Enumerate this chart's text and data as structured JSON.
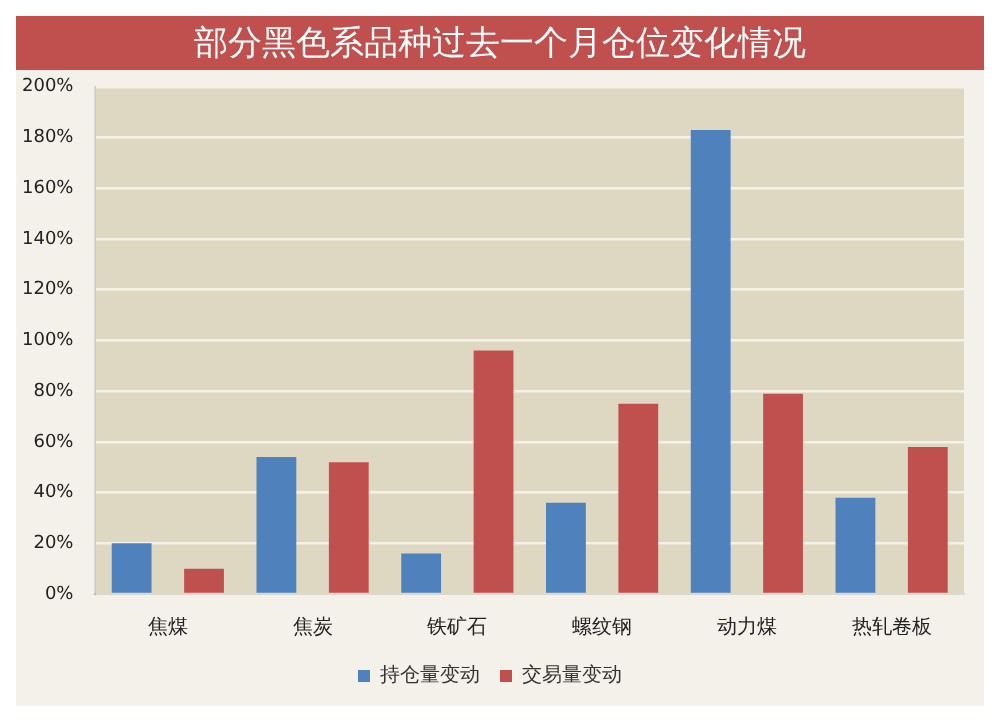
{
  "chart_data": {
    "type": "bar",
    "title": "部分黑色系品种过去一个月仓位变化情况",
    "categories": [
      "焦煤",
      "焦炭",
      "铁矿石",
      "螺纹钢",
      "动力煤",
      "热轧卷板"
    ],
    "series": [
      {
        "name": "持仓量变动",
        "color": "#4f81bd",
        "values": [
          20,
          54,
          16,
          36,
          183,
          38
        ]
      },
      {
        "name": "交易量变动",
        "color": "#c0504d",
        "values": [
          10,
          52,
          96,
          75,
          79,
          58
        ]
      }
    ],
    "ylim": [
      0,
      200
    ],
    "yticks": [
      {
        "value": 0,
        "label": "0%"
      },
      {
        "value": 20,
        "label": "20%"
      },
      {
        "value": 40,
        "label": "40%"
      },
      {
        "value": 60,
        "label": "60%"
      },
      {
        "value": 80,
        "label": "80%"
      },
      {
        "value": 100,
        "label": "100%"
      },
      {
        "value": 120,
        "label": "120%"
      },
      {
        "value": 140,
        "label": "140%"
      },
      {
        "value": 160,
        "label": "160%"
      },
      {
        "value": 180,
        "label": "180%"
      },
      {
        "value": 200,
        "label": "200%"
      }
    ],
    "grid": "y",
    "legend": "bottom"
  }
}
